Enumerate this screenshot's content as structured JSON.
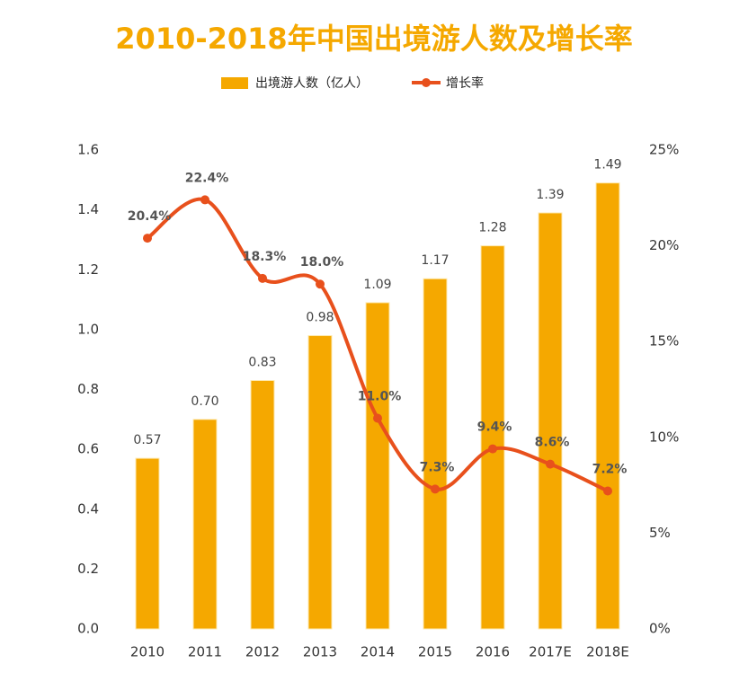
{
  "chart_data": {
    "type": "combo",
    "title": "2010-2018年中国出境游人数及增长率",
    "categories": [
      "2010",
      "2011",
      "2012",
      "2013",
      "2014",
      "2015",
      "2016",
      "2017E",
      "2018E"
    ],
    "series": [
      {
        "name": "出境游人数（亿人）",
        "type": "bar",
        "color": "#f5a800",
        "values": [
          0.57,
          0.7,
          0.83,
          0.98,
          1.09,
          1.17,
          1.28,
          1.39,
          1.49
        ],
        "value_labels": [
          "0.57",
          "0.70",
          "0.83",
          "0.98",
          "1.09",
          "1.17",
          "1.28",
          "1.39",
          "1.49"
        ]
      },
      {
        "name": "增长率",
        "type": "line",
        "axis": "y2",
        "color": "#e8501c",
        "values": [
          20.4,
          22.4,
          18.3,
          18.0,
          11.0,
          7.3,
          9.4,
          8.6,
          7.2
        ],
        "value_labels": [
          "20.4%",
          "22.4%",
          "18.3%",
          "18.0%",
          "11.0%",
          "7.3%",
          "9.4%",
          "8.6%",
          "7.2%"
        ]
      }
    ],
    "ylim": [
      0,
      1.6
    ],
    "yticks": [
      {
        "value": 0,
        "label": "0.0"
      },
      0.2,
      0.4,
      0.6,
      0.8,
      {
        "value": 1,
        "label": "1.0"
      },
      1.2,
      1.4,
      1.6
    ],
    "y2lim": [
      0,
      25
    ],
    "y2ticks": [
      {
        "value": 0,
        "label": "0%"
      },
      {
        "value": 5,
        "label": "5%"
      },
      {
        "value": 10,
        "label": "10%"
      },
      {
        "value": 15,
        "label": "15%"
      },
      {
        "value": 20,
        "label": "20%"
      },
      {
        "value": 25,
        "label": "25%"
      }
    ],
    "legend": "top"
  }
}
